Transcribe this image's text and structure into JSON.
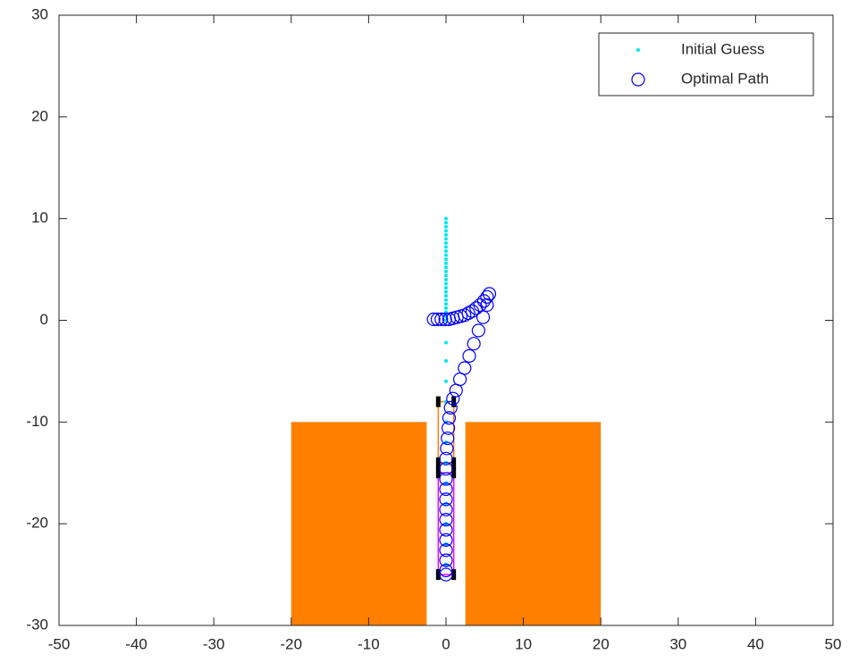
{
  "chart_data": {
    "type": "scatter",
    "xlim": [
      -50,
      50
    ],
    "ylim": [
      -30,
      30
    ],
    "xticks": [
      -50,
      -40,
      -30,
      -20,
      -10,
      0,
      10,
      20,
      30,
      40,
      50
    ],
    "yticks": [
      -30,
      -20,
      -10,
      0,
      10,
      20,
      30
    ],
    "legend": "northeast",
    "series": [
      {
        "name": "Initial Guess",
        "color": "#00e5ee",
        "marker": "dot",
        "x": [
          0,
          0,
          0,
          0,
          0,
          0,
          0,
          0,
          0,
          0,
          0,
          0,
          0,
          0,
          0,
          0,
          0,
          0,
          0,
          0,
          0,
          0,
          0,
          0,
          0,
          0,
          0,
          0,
          0,
          0,
          0,
          0,
          0,
          0,
          0,
          0,
          0,
          0
        ],
        "y": [
          10,
          9.6,
          9.2,
          8.8,
          8.4,
          8,
          7.6,
          7.2,
          6.8,
          6.4,
          6,
          5.6,
          5.2,
          4.8,
          4.4,
          4,
          3.6,
          3.2,
          2.8,
          2.4,
          2,
          1.6,
          1.2,
          0.8,
          0.4,
          0,
          -2.2,
          -4,
          -6,
          -8,
          -10,
          -12,
          -14,
          -16,
          -18,
          -20,
          -22,
          -24
        ]
      },
      {
        "name": "Optimal Path",
        "color": "#0000ff",
        "marker": "circle",
        "x": [
          -1.6,
          -1.1,
          -0.6,
          -0.1,
          0.4,
          0.9,
          1.4,
          1.9,
          2.4,
          2.9,
          3.4,
          3.9,
          4.4,
          4.9,
          5.3,
          5.6,
          5.3,
          4.8,
          4.2,
          3.6,
          3.0,
          2.4,
          1.8,
          1.3,
          0.9,
          0.6,
          0.4,
          0.3,
          0.2,
          0.1,
          0,
          0,
          0,
          0,
          0,
          0,
          0,
          0,
          0,
          0,
          0,
          0,
          0
        ],
        "y": [
          0.1,
          0.1,
          0.1,
          0.1,
          0.1,
          0.2,
          0.3,
          0.4,
          0.5,
          0.7,
          0.9,
          1.2,
          1.5,
          1.9,
          2.3,
          2.6,
          1.5,
          0.3,
          -1,
          -2.3,
          -3.5,
          -4.7,
          -5.8,
          -6.9,
          -7.7,
          -8.6,
          -9.6,
          -10.6,
          -11.6,
          -12.6,
          -13.6,
          -14.6,
          -15.6,
          -16.6,
          -17.6,
          -18.6,
          -19.6,
          -20.6,
          -21.6,
          -22.6,
          -23.6,
          -24.6,
          -25
        ]
      }
    ],
    "obstacles": [
      {
        "x": [
          -20,
          -2.5
        ],
        "y": [
          -30,
          -10
        ],
        "color": "#ff7f00"
      },
      {
        "x": [
          2.5,
          20
        ],
        "y": [
          -30,
          -10
        ],
        "color": "#ff7f00"
      }
    ],
    "vehicles": [
      {
        "x": [
          -1,
          1
        ],
        "y": [
          -14,
          -8
        ],
        "color": "#ff7f00"
      },
      {
        "x": [
          -1,
          1
        ],
        "y": [
          -25,
          -15
        ],
        "color": "#ff00ff"
      }
    ]
  }
}
